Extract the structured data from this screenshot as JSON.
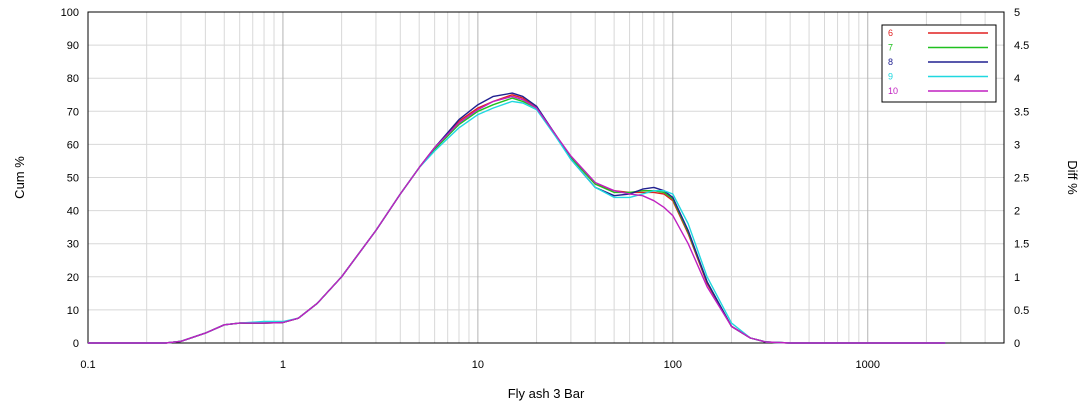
{
  "chart_data": {
    "type": "line",
    "title": "",
    "xlabel": "Fly ash 3 Bar",
    "ylabel": "Cum %",
    "y2label": "Diff %",
    "x_scale": "log",
    "xlim": [
      0.1,
      5000
    ],
    "ylim": [
      0,
      100
    ],
    "y2lim": [
      0,
      5
    ],
    "grid": true,
    "legend_position": "top-right",
    "x_ticks": [
      {
        "value": 0.1,
        "label": "0.1"
      },
      {
        "value": 1,
        "label": "1"
      },
      {
        "value": 10,
        "label": "10"
      },
      {
        "value": 100,
        "label": "100"
      },
      {
        "value": 1000,
        "label": "1000"
      }
    ],
    "y_ticks": [
      {
        "value": 0,
        "label": "0"
      },
      {
        "value": 10,
        "label": "10"
      },
      {
        "value": 20,
        "label": "20"
      },
      {
        "value": 30,
        "label": "30"
      },
      {
        "value": 40,
        "label": "40"
      },
      {
        "value": 50,
        "label": "50"
      },
      {
        "value": 60,
        "label": "60"
      },
      {
        "value": 70,
        "label": "70"
      },
      {
        "value": 80,
        "label": "80"
      },
      {
        "value": 90,
        "label": "90"
      },
      {
        "value": 100,
        "label": "100"
      }
    ],
    "y2_ticks": [
      {
        "value": 0,
        "label": "0"
      },
      {
        "value": 0.5,
        "label": "0.5"
      },
      {
        "value": 1,
        "label": "1"
      },
      {
        "value": 1.5,
        "label": "1.5"
      },
      {
        "value": 2,
        "label": "2"
      },
      {
        "value": 2.5,
        "label": "2.5"
      },
      {
        "value": 3,
        "label": "3"
      },
      {
        "value": 3.5,
        "label": "3.5"
      },
      {
        "value": 4,
        "label": "4"
      },
      {
        "value": 4.5,
        "label": "4.5"
      },
      {
        "value": 5,
        "label": "5"
      }
    ],
    "x": [
      0.1,
      0.25,
      0.3,
      0.4,
      0.5,
      0.6,
      0.8,
      1.0,
      1.2,
      1.5,
      2,
      3,
      4,
      5,
      6,
      8,
      10,
      12,
      15,
      17,
      20,
      25,
      30,
      40,
      50,
      60,
      70,
      80,
      90,
      100,
      120,
      150,
      200,
      250,
      300,
      400,
      1000,
      2500
    ],
    "series": [
      {
        "name": "6",
        "color": "#e02020",
        "values": [
          0,
          0,
          0.5,
          3,
          5.5,
          6,
          6,
          6.2,
          7.5,
          12,
          20,
          34,
          45,
          53,
          59,
          67,
          71,
          73,
          75,
          74,
          71,
          63,
          56,
          48,
          46,
          45.5,
          45.5,
          45.5,
          45,
          43,
          33,
          18,
          5,
          1.5,
          0.3,
          0,
          0,
          0
        ]
      },
      {
        "name": "7",
        "color": "#20c020",
        "values": [
          0,
          0,
          0.5,
          3,
          5.5,
          6,
          6,
          6.2,
          7.5,
          12,
          20,
          34,
          45,
          53,
          58.5,
          66,
          70,
          72,
          74,
          73,
          71,
          63,
          56,
          48,
          45.5,
          45.5,
          46,
          46,
          45.5,
          43.5,
          33.5,
          18.5,
          5,
          1.5,
          0.3,
          0,
          0,
          0
        ]
      },
      {
        "name": "8",
        "color": "#202090",
        "values": [
          0,
          0,
          0.5,
          3,
          5.5,
          6,
          6,
          6.2,
          7.5,
          12,
          20,
          34,
          45,
          53,
          59,
          67.5,
          72,
          74.5,
          75.5,
          74.5,
          71.5,
          63,
          55.5,
          47,
          44.5,
          45,
          46.5,
          47,
          46,
          44,
          34,
          18.5,
          5,
          1.5,
          0.3,
          0,
          0,
          0
        ]
      },
      {
        "name": "9",
        "color": "#20d8e0",
        "values": [
          0,
          0,
          0.5,
          3,
          5.5,
          6,
          6.5,
          6.5,
          7.5,
          12,
          20,
          34,
          45,
          53,
          58,
          65,
          69,
          71,
          73,
          72.5,
          70.5,
          62.5,
          55.5,
          47,
          44,
          44,
          45,
          46,
          46,
          45,
          36,
          20,
          6,
          1.5,
          0.3,
          0,
          0,
          0
        ]
      },
      {
        "name": "10",
        "color": "#c020c0",
        "values": [
          0,
          0,
          0.5,
          3,
          5.5,
          6,
          6,
          6.2,
          7.5,
          12,
          20,
          34,
          45,
          53,
          59,
          66.5,
          70.5,
          73,
          74.5,
          73.5,
          71,
          63,
          56.5,
          48.5,
          46,
          45,
          44.5,
          43,
          41,
          38.5,
          30,
          17,
          5,
          1.5,
          0.3,
          0,
          0,
          0
        ]
      }
    ]
  }
}
